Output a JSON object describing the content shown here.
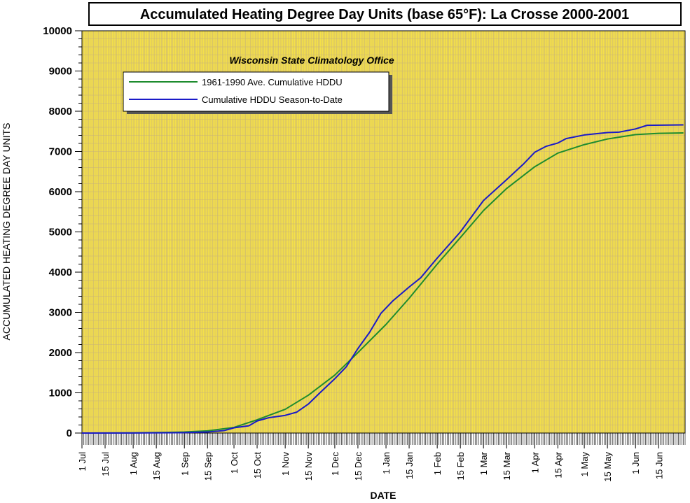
{
  "chart_data": {
    "type": "line",
    "title": "Accumulated Heating Degree Day Units (base 65°F): La Crosse 2000-2001",
    "subtitle": "Wisconsin State Climatology Office",
    "xlabel": "DATE",
    "ylabel": "ACCUMULATED HEATING DEGREE DAY UNITS",
    "ylim": [
      0,
      10000
    ],
    "yticks": [
      0,
      1000,
      2000,
      3000,
      4000,
      5000,
      6000,
      7000,
      8000,
      9000,
      10000
    ],
    "xlim": [
      "2000-07-01",
      "2001-06-30"
    ],
    "xticks": [
      {
        "date": "2000-07-01",
        "label": "1 Jul"
      },
      {
        "date": "2000-07-15",
        "label": "15 Jul"
      },
      {
        "date": "2000-08-01",
        "label": "1 Aug"
      },
      {
        "date": "2000-08-15",
        "label": "15 Aug"
      },
      {
        "date": "2000-09-01",
        "label": "1 Sep"
      },
      {
        "date": "2000-09-15",
        "label": "15 Sep"
      },
      {
        "date": "2000-10-01",
        "label": "1 Oct"
      },
      {
        "date": "2000-10-15",
        "label": "15 Oct"
      },
      {
        "date": "2000-11-01",
        "label": "1 Nov"
      },
      {
        "date": "2000-11-15",
        "label": "15 Nov"
      },
      {
        "date": "2000-12-01",
        "label": "1 Dec"
      },
      {
        "date": "2000-12-15",
        "label": "15 Dec"
      },
      {
        "date": "2001-01-01",
        "label": "1 Jan"
      },
      {
        "date": "2001-01-15",
        "label": "15 Jan"
      },
      {
        "date": "2001-02-01",
        "label": "1 Feb"
      },
      {
        "date": "2001-02-15",
        "label": "15 Feb"
      },
      {
        "date": "2001-03-01",
        "label": "1 Mar"
      },
      {
        "date": "2001-03-15",
        "label": "15 Mar"
      },
      {
        "date": "2001-04-01",
        "label": "1 Apr"
      },
      {
        "date": "2001-04-15",
        "label": "15 Apr"
      },
      {
        "date": "2001-05-01",
        "label": "1 May"
      },
      {
        "date": "2001-05-15",
        "label": "15 May"
      },
      {
        "date": "2001-06-01",
        "label": "1 Jun"
      },
      {
        "date": "2001-06-15",
        "label": "15 Jun"
      }
    ],
    "grid": true,
    "legend_position": "top-left",
    "background_color": "#F4E04A",
    "grid_color": "#C7B27A",
    "series": [
      {
        "name": "1961-1990 Ave. Cumulative HDDU",
        "color": "#1E8C2E",
        "points": [
          [
            "2000-07-01",
            0
          ],
          [
            "2000-08-01",
            5
          ],
          [
            "2000-08-15",
            12
          ],
          [
            "2000-09-01",
            25
          ],
          [
            "2000-09-15",
            55
          ],
          [
            "2000-10-01",
            140
          ],
          [
            "2000-10-15",
            330
          ],
          [
            "2000-11-01",
            590
          ],
          [
            "2000-11-15",
            940
          ],
          [
            "2000-12-01",
            1440
          ],
          [
            "2000-12-15",
            2000
          ],
          [
            "2001-01-01",
            2700
          ],
          [
            "2001-01-15",
            3350
          ],
          [
            "2001-02-01",
            4200
          ],
          [
            "2001-02-15",
            4860
          ],
          [
            "2001-03-01",
            5530
          ],
          [
            "2001-03-15",
            6080
          ],
          [
            "2001-04-01",
            6620
          ],
          [
            "2001-04-15",
            6960
          ],
          [
            "2001-05-01",
            7170
          ],
          [
            "2001-05-15",
            7310
          ],
          [
            "2001-06-01",
            7420
          ],
          [
            "2001-06-15",
            7450
          ],
          [
            "2001-06-30",
            7460
          ]
        ]
      },
      {
        "name": "Cumulative HDDU Season-to-Date",
        "color": "#1A1AC8",
        "points": [
          [
            "2000-07-01",
            0
          ],
          [
            "2000-08-01",
            2
          ],
          [
            "2000-09-01",
            10
          ],
          [
            "2000-09-15",
            25
          ],
          [
            "2000-09-25",
            60
          ],
          [
            "2000-10-01",
            130
          ],
          [
            "2000-10-10",
            180
          ],
          [
            "2000-10-15",
            300
          ],
          [
            "2000-10-22",
            380
          ],
          [
            "2000-11-01",
            440
          ],
          [
            "2000-11-08",
            520
          ],
          [
            "2000-11-15",
            720
          ],
          [
            "2000-11-22",
            1000
          ],
          [
            "2000-12-01",
            1350
          ],
          [
            "2000-12-08",
            1650
          ],
          [
            "2000-12-15",
            2100
          ],
          [
            "2000-12-22",
            2500
          ],
          [
            "2000-12-29",
            2980
          ],
          [
            "2001-01-05",
            3280
          ],
          [
            "2001-01-15",
            3630
          ],
          [
            "2001-01-22",
            3860
          ],
          [
            "2001-02-01",
            4350
          ],
          [
            "2001-02-15",
            5000
          ],
          [
            "2001-03-01",
            5780
          ],
          [
            "2001-03-15",
            6300
          ],
          [
            "2001-03-25",
            6680
          ],
          [
            "2001-04-01",
            6980
          ],
          [
            "2001-04-08",
            7130
          ],
          [
            "2001-04-15",
            7210
          ],
          [
            "2001-04-20",
            7320
          ],
          [
            "2001-05-01",
            7410
          ],
          [
            "2001-05-15",
            7470
          ],
          [
            "2001-05-22",
            7480
          ],
          [
            "2001-06-01",
            7560
          ],
          [
            "2001-06-08",
            7650
          ],
          [
            "2001-06-30",
            7660
          ]
        ]
      }
    ]
  }
}
